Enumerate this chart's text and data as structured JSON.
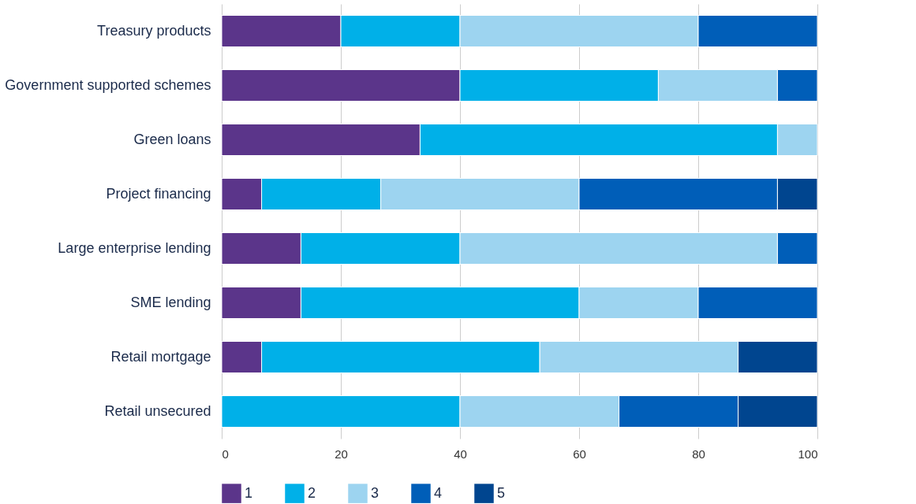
{
  "chart_data": {
    "type": "bar",
    "orientation": "horizontal",
    "stacked": true,
    "categories": [
      "Treasury products",
      "Government supported schemes",
      "Green loans",
      "Project financing",
      "Large enterprise lending",
      "SME lending",
      "Retail mortgage",
      "Retail unsecured"
    ],
    "series": [
      {
        "name": "1",
        "color": "#5b358a",
        "values": [
          20,
          40,
          33.3,
          6.7,
          13.3,
          13.3,
          6.7,
          0
        ]
      },
      {
        "name": "2",
        "color": "#00b0e8",
        "values": [
          20,
          33.3,
          60,
          20,
          26.7,
          46.7,
          46.7,
          40
        ]
      },
      {
        "name": "3",
        "color": "#9dd4f0",
        "values": [
          40,
          20,
          6.7,
          33.3,
          53.3,
          20,
          33.3,
          26.7
        ]
      },
      {
        "name": "4",
        "color": "#005eb8",
        "values": [
          20,
          6.7,
          0,
          33.3,
          6.7,
          20,
          0,
          20
        ]
      },
      {
        "name": "5",
        "color": "#00458f",
        "values": [
          0,
          0,
          0,
          6.7,
          0,
          0,
          13.3,
          13.3
        ]
      }
    ],
    "xlim": [
      0,
      100
    ],
    "xticks": [
      0,
      20,
      40,
      60,
      80,
      100
    ],
    "grid": "x",
    "legend": "bottom"
  }
}
